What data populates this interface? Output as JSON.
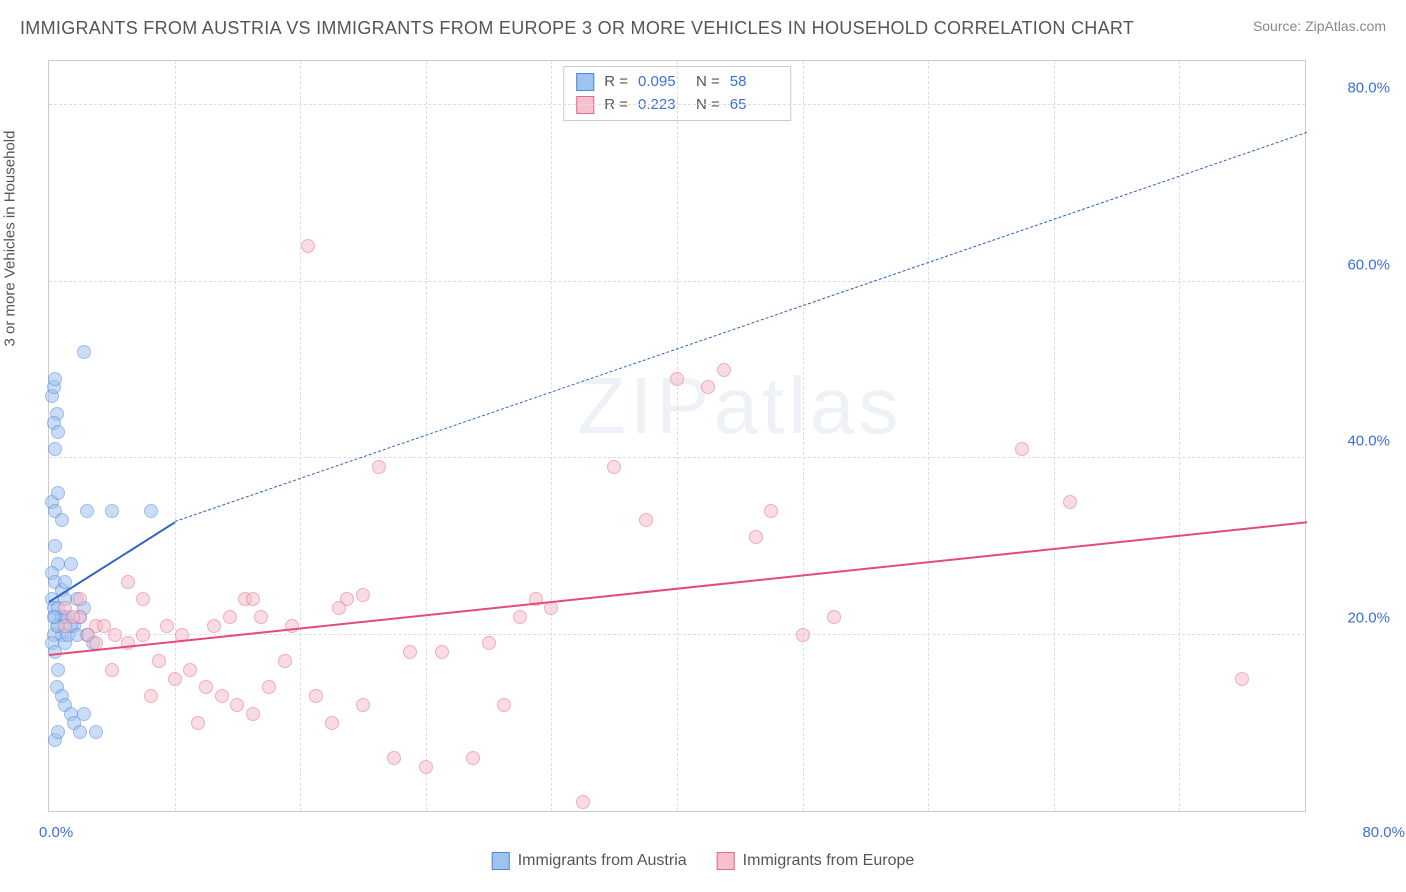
{
  "title": "IMMIGRANTS FROM AUSTRIA VS IMMIGRANTS FROM EUROPE 3 OR MORE VEHICLES IN HOUSEHOLD CORRELATION CHART",
  "source_label": "Source: ",
  "source_value": "ZipAtlas.com",
  "y_axis_label": "3 or more Vehicles in Household",
  "watermark": "ZIPatlas",
  "chart": {
    "type": "scatter_with_trend",
    "background_color": "#ffffff",
    "grid_color": "#dddddd",
    "border_color": "#cccccc",
    "x_range": [
      0,
      80
    ],
    "y_range": [
      0,
      85
    ],
    "x_ticks": [
      "0.0%",
      "80.0%"
    ],
    "y_ticks": [
      {
        "v": 20,
        "label": "20.0%"
      },
      {
        "v": 40,
        "label": "40.0%"
      },
      {
        "v": 60,
        "label": "60.0%"
      },
      {
        "v": 80,
        "label": "80.0%"
      }
    ],
    "y_grid": [
      20,
      40,
      60,
      80
    ],
    "x_grid": [
      8,
      16,
      24,
      32,
      40,
      48,
      56,
      64,
      72
    ],
    "marker_radius": 7,
    "marker_opacity": 0.55,
    "marker_stroke_width": 1.2,
    "trend_line_width_solid": 2.5,
    "trend_line_width_dash": 1.5,
    "series": [
      {
        "key": "austria",
        "label": "Immigrants from Austria",
        "fill": "#9fc3ef",
        "stroke": "#4f86d9",
        "trend_color": "#2f63c2",
        "R": "0.095",
        "N": "58",
        "trend_data_extent": {
          "x1": 0,
          "y1": 24,
          "x2": 8,
          "y2": 33
        },
        "trend_extrap_end": {
          "x": 80,
          "y": 77
        },
        "points": [
          [
            0.2,
            47
          ],
          [
            0.3,
            48
          ],
          [
            0.4,
            49
          ],
          [
            0.5,
            45
          ],
          [
            0.3,
            44
          ],
          [
            0.6,
            43
          ],
          [
            0.4,
            41
          ],
          [
            0.2,
            35
          ],
          [
            0.4,
            34
          ],
          [
            0.6,
            36
          ],
          [
            0.8,
            33
          ],
          [
            2.2,
            52
          ],
          [
            2.4,
            34
          ],
          [
            4.0,
            34
          ],
          [
            6.5,
            34
          ],
          [
            0.4,
            30
          ],
          [
            0.6,
            28
          ],
          [
            0.2,
            27
          ],
          [
            0.4,
            26
          ],
          [
            0.8,
            25
          ],
          [
            0.2,
            24
          ],
          [
            0.3,
            23
          ],
          [
            0.4,
            22
          ],
          [
            0.6,
            21
          ],
          [
            0.8,
            20
          ],
          [
            0.3,
            20
          ],
          [
            0.2,
            19
          ],
          [
            1.0,
            22
          ],
          [
            0.4,
            18
          ],
          [
            0.6,
            16
          ],
          [
            0.5,
            14
          ],
          [
            0.8,
            13
          ],
          [
            1.0,
            12
          ],
          [
            1.4,
            11
          ],
          [
            1.6,
            10
          ],
          [
            2.2,
            11
          ],
          [
            2.0,
            9
          ],
          [
            3.0,
            9
          ],
          [
            0.4,
            8
          ],
          [
            0.6,
            9
          ],
          [
            1.0,
            19
          ],
          [
            1.2,
            20
          ],
          [
            1.6,
            21
          ],
          [
            2.0,
            22
          ],
          [
            2.4,
            20
          ],
          [
            2.8,
            19
          ],
          [
            1.0,
            26
          ],
          [
            1.4,
            28
          ],
          [
            1.8,
            24
          ],
          [
            1.2,
            22
          ],
          [
            2.2,
            23
          ],
          [
            0.8,
            22
          ],
          [
            1.4,
            21
          ],
          [
            0.6,
            23
          ],
          [
            1.0,
            24
          ],
          [
            1.8,
            20
          ],
          [
            0.5,
            21
          ],
          [
            0.3,
            22
          ]
        ]
      },
      {
        "key": "europe",
        "label": "Immigrants from Europe",
        "fill": "#f4c1cc",
        "stroke": "#e76a8b",
        "trend_color": "#e64a7a",
        "R": "0.223",
        "N": "65",
        "trend_data_extent": {
          "x1": 0,
          "y1": 18,
          "x2": 80,
          "y2": 33
        },
        "trend_extrap_end": null,
        "points": [
          [
            1.0,
            23
          ],
          [
            2.0,
            22
          ],
          [
            3.0,
            21
          ],
          [
            4.2,
            20
          ],
          [
            5.0,
            19
          ],
          [
            6.0,
            20
          ],
          [
            7.0,
            17
          ],
          [
            8.0,
            15
          ],
          [
            9.0,
            16
          ],
          [
            10.0,
            14
          ],
          [
            11.0,
            13
          ],
          [
            12.0,
            12
          ],
          [
            13.0,
            11
          ],
          [
            14.0,
            14
          ],
          [
            15.0,
            17
          ],
          [
            7.5,
            21
          ],
          [
            8.5,
            20
          ],
          [
            10.5,
            21
          ],
          [
            12.5,
            24
          ],
          [
            13.5,
            22
          ],
          [
            17.0,
            13
          ],
          [
            18.0,
            10
          ],
          [
            20.0,
            12
          ],
          [
            22.0,
            6
          ],
          [
            23.0,
            18
          ],
          [
            24.0,
            5
          ],
          [
            25.0,
            18
          ],
          [
            27.0,
            6
          ],
          [
            28.0,
            19
          ],
          [
            29.0,
            12
          ],
          [
            30.0,
            22
          ],
          [
            19.0,
            24
          ],
          [
            20.0,
            24.5
          ],
          [
            32.0,
            23
          ],
          [
            34.0,
            1
          ],
          [
            36.0,
            39
          ],
          [
            38.0,
            33
          ],
          [
            40.0,
            49
          ],
          [
            42.0,
            48
          ],
          [
            43.0,
            50
          ],
          [
            45.0,
            31
          ],
          [
            46.0,
            34
          ],
          [
            48.0,
            20
          ],
          [
            50.0,
            22
          ],
          [
            62.0,
            41
          ],
          [
            65.0,
            35
          ],
          [
            76.0,
            15
          ],
          [
            6.0,
            24
          ],
          [
            5.0,
            26
          ],
          [
            3.5,
            21
          ],
          [
            1.5,
            22
          ],
          [
            2.5,
            20
          ],
          [
            4.0,
            16
          ],
          [
            6.5,
            13
          ],
          [
            9.5,
            10
          ],
          [
            11.5,
            22
          ],
          [
            13.0,
            24
          ],
          [
            15.5,
            21
          ],
          [
            18.5,
            23
          ],
          [
            21.0,
            39
          ],
          [
            31.0,
            24
          ],
          [
            16.5,
            64
          ],
          [
            2.0,
            24
          ],
          [
            1.0,
            21
          ],
          [
            3.0,
            19
          ]
        ]
      }
    ]
  },
  "stat_box": {
    "R_label": "R =",
    "N_label": "N ="
  }
}
